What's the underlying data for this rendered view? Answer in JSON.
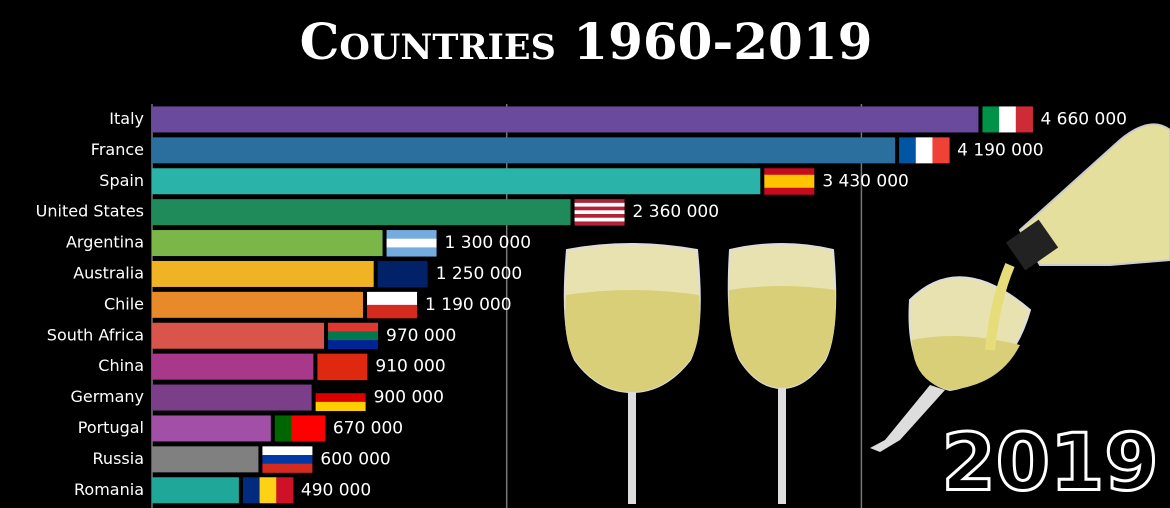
{
  "chart_data": {
    "type": "bar",
    "orientation": "horizontal",
    "title": "Countries 1960-2019",
    "annotation": "2019",
    "categories": [
      "Italy",
      "France",
      "Spain",
      "United States",
      "Argentina",
      "Australia",
      "Chile",
      "South Africa",
      "China",
      "Germany",
      "Portugal",
      "Russia",
      "Romania"
    ],
    "values": [
      4660000,
      4190000,
      3430000,
      2360000,
      1300000,
      1250000,
      1190000,
      970000,
      910000,
      900000,
      670000,
      600000,
      490000
    ],
    "value_labels": [
      "4 660 000",
      "4 190 000",
      "3 430 000",
      "2 360 000",
      "1 300 000",
      "1 250 000",
      "1 190 000",
      "970 000",
      "910 000",
      "900 000",
      "670 000",
      "600 000",
      "490 000"
    ],
    "colors": [
      "#6a4a9c",
      "#2a6f9e",
      "#2ab3a8",
      "#1f8a5a",
      "#7ab648",
      "#f0b323",
      "#e8892a",
      "#d9544a",
      "#a8398a",
      "#7b3f8a",
      "#a24fa8",
      "#808080",
      "#1fa89a"
    ],
    "xlim": [
      0,
      5740000
    ],
    "xticks": [
      0,
      2000000,
      4000000
    ],
    "grid": true
  }
}
